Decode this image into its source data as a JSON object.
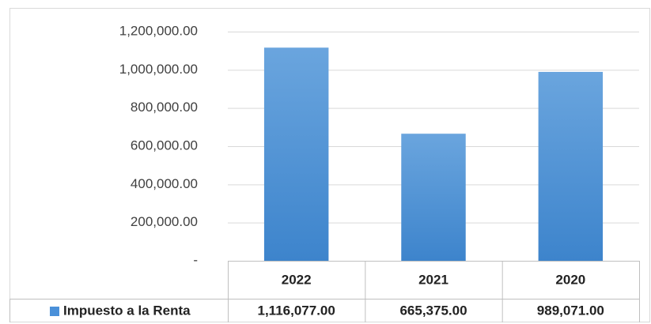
{
  "chart_data": {
    "type": "bar",
    "categories": [
      "2022",
      "2021",
      "2020"
    ],
    "series": [
      {
        "name": "Impuesto a la Renta",
        "color": "#4a90d9",
        "values": [
          1116077,
          665375,
          989071
        ],
        "value_labels": [
          "1,116,077.00",
          "665,375.00",
          "989,071.00"
        ]
      }
    ],
    "ylim": [
      0,
      1200000
    ],
    "yticks": [
      {
        "value": 0,
        "label": "-"
      },
      {
        "value": 200000,
        "label": "200,000.00"
      },
      {
        "value": 400000,
        "label": "400,000.00"
      },
      {
        "value": 600000,
        "label": "600,000.00"
      },
      {
        "value": 800000,
        "label": "800,000.00"
      },
      {
        "value": 1000000,
        "label": "1,000,000.00"
      },
      {
        "value": 1200000,
        "label": "1,200,000.00"
      }
    ],
    "grid": true,
    "data_table": true
  }
}
